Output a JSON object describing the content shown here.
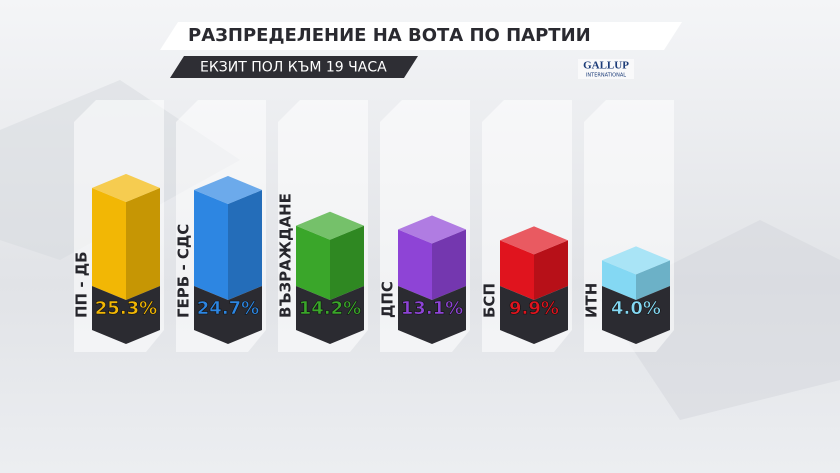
{
  "chart_data": {
    "type": "bar",
    "title": "РАЗПРЕДЕЛЕНИЕ НА ВОТА ПО ПАРТИИ",
    "subtitle": "ЕКЗИТ ПОЛ КЪМ 19 ЧАСА",
    "source": {
      "name": "GALLUP",
      "sub": "INTERNATIONAL"
    },
    "categories": [
      "ПП - ДБ",
      "ГЕРБ - СДС",
      "ВЪЗРАЖДАНЕ",
      "ДПС",
      "БСП",
      "ИТН"
    ],
    "values": [
      25.3,
      24.7,
      14.2,
      13.1,
      9.9,
      4.0
    ],
    "value_labels": [
      "25.3%",
      "24.7%",
      "14.2%",
      "13.1%",
      "9.9%",
      "4.0%"
    ],
    "colors": [
      "#f2b705",
      "#2d86e2",
      "#3aa62a",
      "#8e44d6",
      "#e0141e",
      "#84d8f3"
    ]
  }
}
